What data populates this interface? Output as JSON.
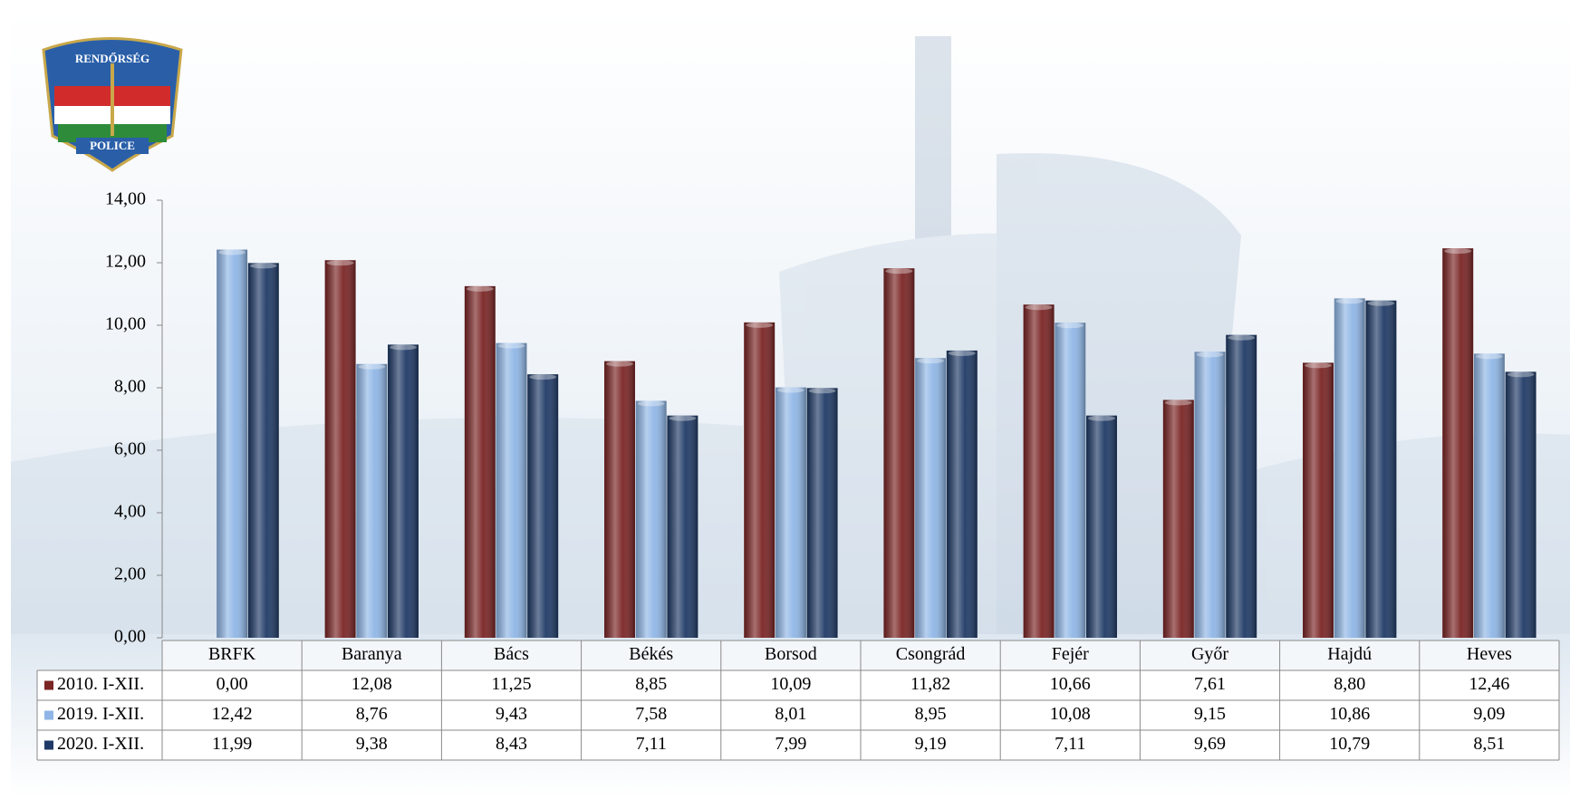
{
  "logo": {
    "top": "RENDŐRSÉG",
    "bottom": "POLICE"
  },
  "chart_data": {
    "type": "bar",
    "categories": [
      "BRFK",
      "Baranya",
      "Bács",
      "Békés",
      "Borsod",
      "Csongrád",
      "Fejér",
      "Győr",
      "Hajdú",
      "Heves"
    ],
    "series": [
      {
        "name": "2010. I-XII.",
        "color": "#7a2424",
        "values": [
          0.0,
          12.08,
          11.25,
          8.85,
          10.09,
          11.82,
          10.66,
          7.61,
          8.8,
          12.46
        ],
        "value_labels": [
          "0,00",
          "12,08",
          "11,25",
          "8,85",
          "10,09",
          "11,82",
          "10,66",
          "7,61",
          "8,80",
          "12,46"
        ]
      },
      {
        "name": "2019. I-XII.",
        "color": "#8fb6e6",
        "values": [
          12.42,
          8.76,
          9.43,
          7.58,
          8.01,
          8.95,
          10.08,
          9.15,
          10.86,
          9.09
        ],
        "value_labels": [
          "12,42",
          "8,76",
          "9,43",
          "7,58",
          "8,01",
          "8,95",
          "10,08",
          "9,15",
          "10,86",
          "9,09"
        ]
      },
      {
        "name": "2020. I-XII.",
        "color": "#1f3a66",
        "values": [
          11.99,
          9.38,
          8.43,
          7.11,
          7.99,
          9.19,
          7.11,
          9.69,
          10.79,
          8.51
        ],
        "value_labels": [
          "11,99",
          "9,38",
          "8,43",
          "7,11",
          "7,99",
          "9,19",
          "7,11",
          "9,69",
          "10,79",
          "8,51"
        ]
      }
    ],
    "ylim": [
      0,
      14
    ],
    "yticks": [
      {
        "value": 0,
        "label": "0,00"
      },
      {
        "value": 2,
        "label": "2,00"
      },
      {
        "value": 4,
        "label": "4,00"
      },
      {
        "value": 6,
        "label": "6,00"
      },
      {
        "value": 8,
        "label": "8,00"
      },
      {
        "value": 10,
        "label": "10,00"
      },
      {
        "value": 12,
        "label": "12,00"
      },
      {
        "value": 14,
        "label": "14,00"
      }
    ],
    "grid": false
  }
}
